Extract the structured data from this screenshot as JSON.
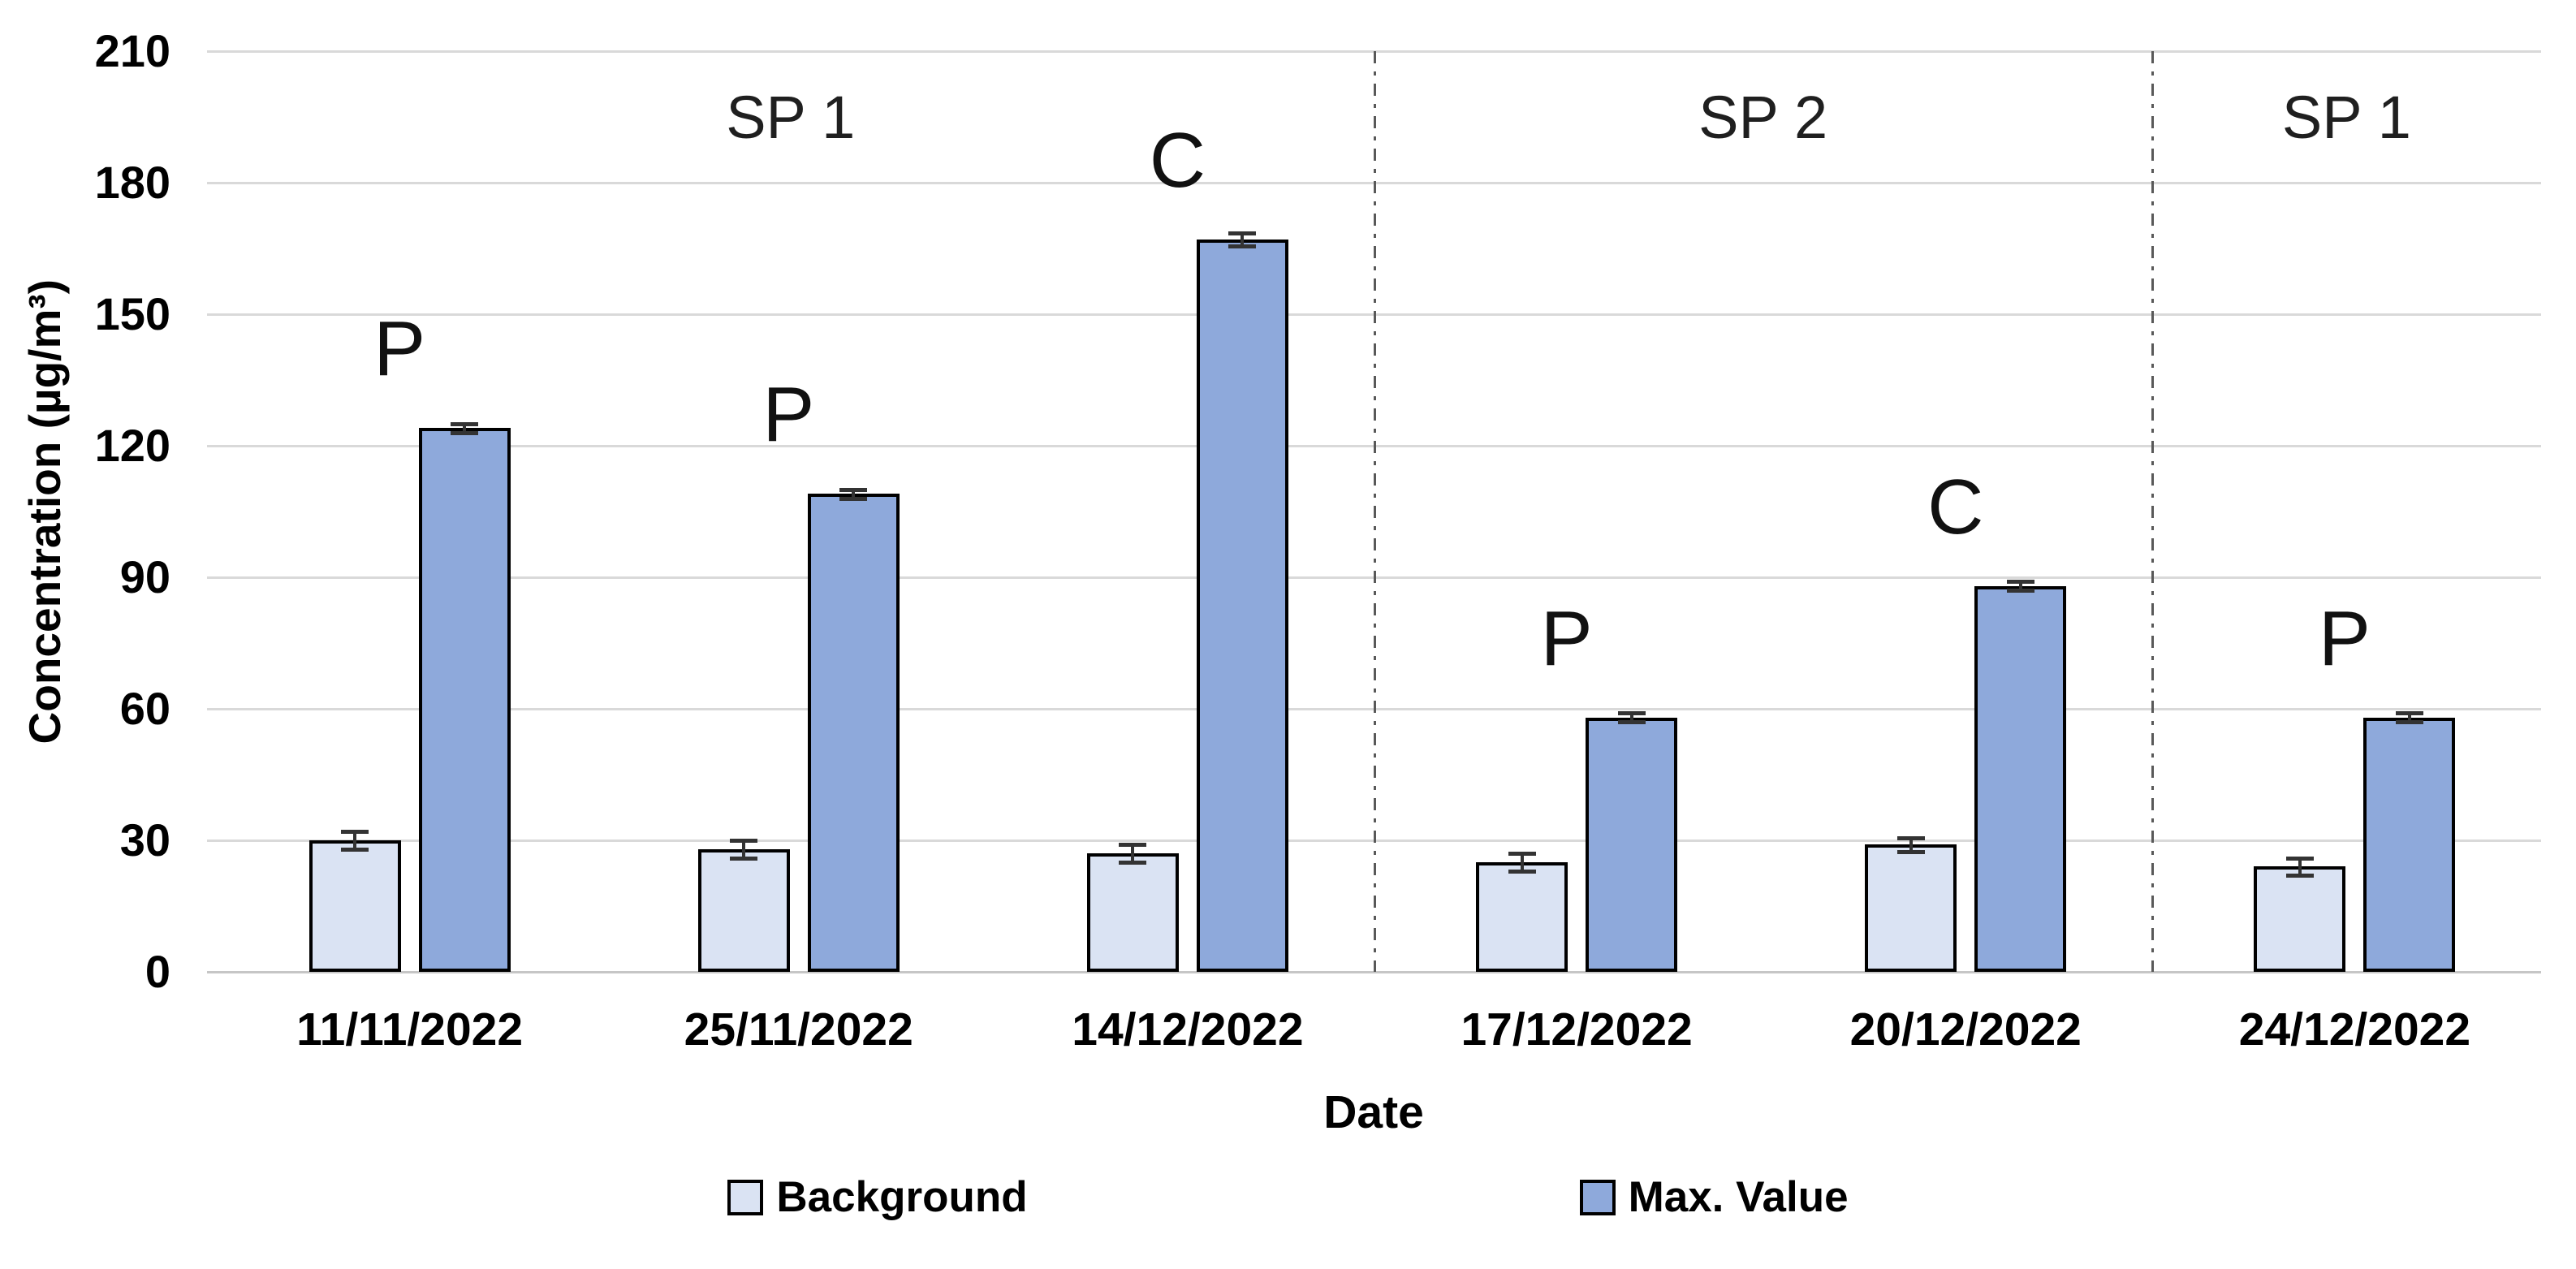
{
  "y_axis": {
    "title": "Concentration (µg/m³)",
    "tick_labels": [
      "0",
      "30",
      "60",
      "90",
      "120",
      "150",
      "180",
      "210"
    ]
  },
  "x_axis": {
    "title": "Date"
  },
  "legend": {
    "items": [
      {
        "label": "Background",
        "color": "#dae3f3"
      },
      {
        "label": "Max. Value",
        "color": "#8ea9db"
      }
    ]
  },
  "chart_data": {
    "type": "bar",
    "title": "",
    "xlabel": "Date",
    "ylabel": "Concentration (µg/m³)",
    "ylim": [
      0,
      210
    ],
    "ytick_step": 30,
    "grid": true,
    "legend_position": "bottom",
    "categories": [
      "11/11/2022",
      "25/11/2022",
      "14/12/2022",
      "17/12/2022",
      "20/12/2022",
      "24/12/2022"
    ],
    "series": [
      {
        "name": "Background",
        "color": "#dae3f3",
        "values": [
          30,
          28,
          27,
          25,
          29,
          24
        ],
        "errors": [
          2,
          2,
          2,
          2,
          1.5,
          2
        ]
      },
      {
        "name": "Max. Value",
        "color": "#8ea9db",
        "values": [
          124,
          109,
          167,
          58,
          88,
          58
        ],
        "errors": [
          1,
          1,
          1.5,
          1,
          1,
          1
        ]
      }
    ],
    "annotations": [
      "P",
      "P",
      "C",
      "P",
      "C",
      "P"
    ],
    "sections": [
      {
        "label": "SP 1",
        "from": 0,
        "to": 2
      },
      {
        "label": "SP 2",
        "from": 3,
        "to": 4
      },
      {
        "label": "SP 1",
        "from": 5,
        "to": 5
      }
    ],
    "style": {
      "bar_border": "#000000",
      "gridline": "#d9d9d9",
      "separator": "#595959",
      "error_bar": "#333333"
    }
  }
}
